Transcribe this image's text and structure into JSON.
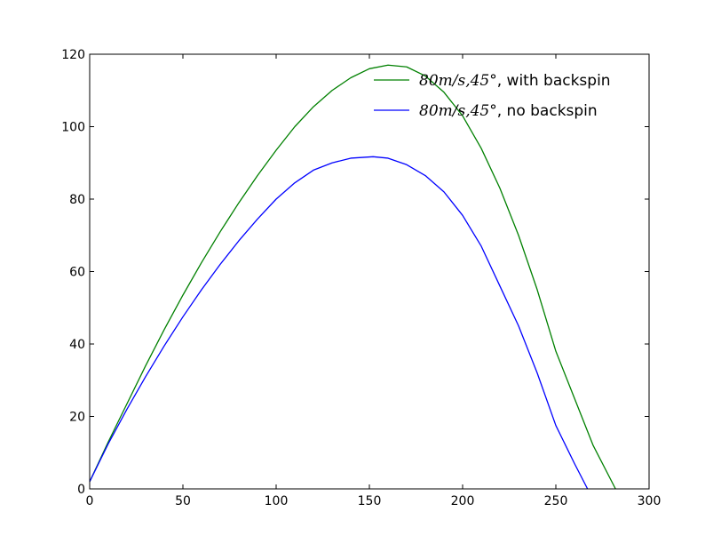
{
  "chart_data": {
    "type": "line",
    "xlim": [
      0,
      300
    ],
    "ylim": [
      0,
      120
    ],
    "x_ticks": [
      0,
      50,
      100,
      150,
      200,
      250,
      300
    ],
    "y_ticks": [
      0,
      20,
      40,
      60,
      80,
      100,
      120
    ],
    "grid": false,
    "legend_position": "top-right",
    "series": [
      {
        "name_math": "80m/s,45°",
        "name_suffix": ", with backspin",
        "color": "#008000",
        "x": [
          0,
          10,
          20,
          30,
          40,
          50,
          60,
          70,
          80,
          90,
          100,
          110,
          120,
          130,
          140,
          150,
          160,
          170,
          180,
          190,
          200,
          210,
          220,
          230,
          240,
          250,
          260,
          270,
          282
        ],
        "y": [
          2,
          13,
          23.5,
          34,
          44,
          53.5,
          62.5,
          71,
          79,
          86.5,
          93.5,
          100,
          105.5,
          110,
          113.5,
          116,
          117,
          116.5,
          114,
          109.5,
          103,
          94,
          83,
          70,
          55,
          38,
          25,
          12,
          0
        ]
      },
      {
        "name_math": "80m/s,45°",
        "name_suffix": ", no backspin",
        "color": "#0000ff",
        "x": [
          0,
          10,
          20,
          30,
          40,
          50,
          60,
          70,
          80,
          90,
          100,
          110,
          120,
          130,
          140,
          152,
          160,
          170,
          180,
          190,
          200,
          210,
          220,
          230,
          240,
          250,
          260,
          267
        ],
        "y": [
          2,
          12.5,
          22,
          31,
          39.5,
          47.5,
          55,
          62,
          68.5,
          74.5,
          80,
          84.5,
          88,
          90,
          91.3,
          91.7,
          91.3,
          89.5,
          86.5,
          82,
          75.5,
          67,
          56,
          45,
          32,
          17.5,
          7,
          0
        ]
      }
    ]
  }
}
